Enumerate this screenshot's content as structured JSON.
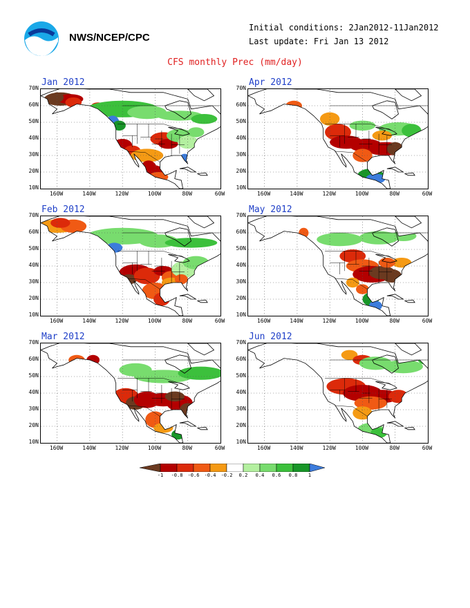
{
  "header": {
    "agency": "NWS/NCEP/CPC",
    "initial_conditions": "Initial conditions: 2Jan2012-11Jan2012",
    "last_update": "Last update: Fri Jan 13 2012",
    "title": "CFS monthly Prec (mm/day)"
  },
  "colors": {
    "ocean": "#ffffff",
    "coast": "#000000",
    "title_red": "#e02020",
    "panel_title_blue": "#2040c8"
  },
  "axes": {
    "lat_labels": [
      "70N",
      "60N",
      "50N",
      "40N",
      "30N",
      "20N",
      "10N"
    ],
    "lon_labels": [
      "160W",
      "140W",
      "120W",
      "100W",
      "80W",
      "60W"
    ]
  },
  "panels": [
    {
      "id": "jan",
      "label": "Jan 2012"
    },
    {
      "id": "apr",
      "label": "Apr 2012"
    },
    {
      "id": "feb",
      "label": "Feb 2012"
    },
    {
      "id": "may",
      "label": "May 2012"
    },
    {
      "id": "mar",
      "label": "Mar 2012"
    },
    {
      "id": "jun",
      "label": "Jun 2012"
    }
  ],
  "colorbar": {
    "labels": [
      "-1",
      "-0.8",
      "-0.6",
      "-0.4",
      "-0.2",
      "0.2",
      "0.4",
      "0.6",
      "0.8",
      "1"
    ],
    "colors": [
      "#6b3a20",
      "#b40000",
      "#dc2a0a",
      "#f05a14",
      "#f59a14",
      "#ffffff",
      "#b4f0a0",
      "#78dc6e",
      "#3cc03c",
      "#189628",
      "#3c7cdc"
    ]
  }
}
